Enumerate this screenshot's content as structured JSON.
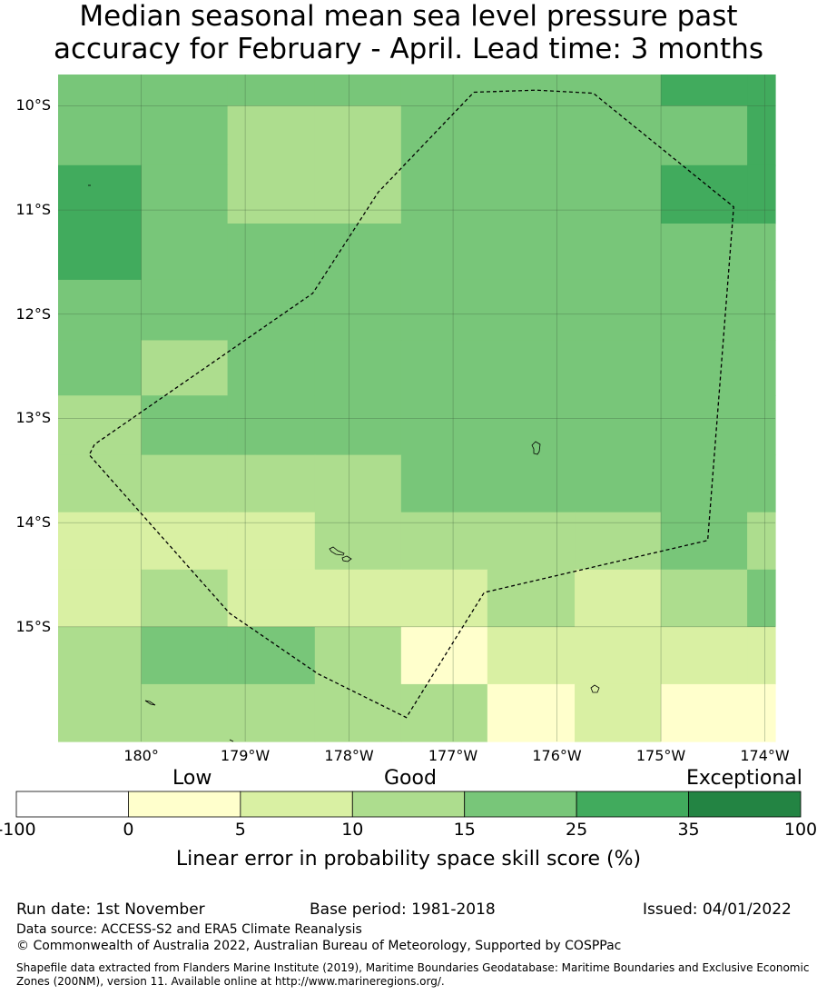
{
  "title": {
    "line1": "Median seasonal mean sea level pressure past",
    "line2": "accuracy for February - April. Lead time: 3 months"
  },
  "map": {
    "lat_labels": [
      "10°S",
      "11°S",
      "12°S",
      "13°S",
      "14°S",
      "15°S"
    ],
    "lon_labels": [
      "180°",
      "179°W",
      "178°W",
      "177°W",
      "176°W",
      "175°W",
      "174°W"
    ],
    "lat_values": [
      -10,
      -11,
      -12,
      -13,
      -14,
      -15
    ],
    "lon_values": [
      -180,
      -179,
      -178,
      -177,
      -176,
      -175,
      -174
    ],
    "extent": {
      "lon_min": -180.8,
      "lon_max": -173.9,
      "lat_max": -9.7,
      "lat_min": -16.1
    },
    "cell_lon_edges": [
      -180.8,
      -180.0,
      -179.17,
      -178.33,
      -177.5,
      -176.67,
      -175.83,
      -175.0,
      -174.17,
      -173.9
    ],
    "cell_lat_edges": [
      -9.7,
      -10.0,
      -10.57,
      -11.13,
      -11.67,
      -12.25,
      -12.78,
      -13.35,
      -13.9,
      -14.45,
      -15.0,
      -15.55,
      -16.1
    ],
    "grid_category_index": [
      [
        3,
        3,
        3,
        3,
        3,
        3,
        3,
        4,
        4
      ],
      [
        3,
        3,
        2,
        2,
        3,
        3,
        3,
        3,
        4
      ],
      [
        4,
        3,
        2,
        2,
        3,
        3,
        3,
        4,
        4
      ],
      [
        4,
        3,
        3,
        3,
        3,
        3,
        3,
        3,
        3
      ],
      [
        3,
        3,
        3,
        3,
        3,
        3,
        3,
        3,
        3
      ],
      [
        3,
        2,
        3,
        3,
        3,
        3,
        3,
        3,
        3
      ],
      [
        2,
        3,
        3,
        3,
        3,
        3,
        3,
        3,
        3
      ],
      [
        2,
        2,
        2,
        2,
        3,
        3,
        3,
        3,
        3
      ],
      [
        1,
        1,
        1,
        2,
        2,
        2,
        2,
        3,
        2
      ],
      [
        1,
        2,
        1,
        1,
        1,
        2,
        1,
        2,
        3
      ],
      [
        2,
        3,
        3,
        2,
        0,
        1,
        1,
        1,
        1
      ],
      [
        2,
        2,
        2,
        2,
        2,
        0,
        1,
        0,
        0
      ]
    ],
    "eez_boundary": [
      [
        -176.8,
        -9.87
      ],
      [
        -176.2,
        -9.85
      ],
      [
        -175.65,
        -9.88
      ],
      [
        -174.3,
        -10.97
      ],
      [
        -174.55,
        -14.17
      ],
      [
        -176.7,
        -14.67
      ],
      [
        -177.45,
        -15.87
      ],
      [
        -178.3,
        -15.45
      ],
      [
        -179.15,
        -14.87
      ],
      [
        -180.5,
        -13.35
      ],
      [
        -180.45,
        -13.25
      ],
      [
        -178.35,
        -11.8
      ],
      [
        -177.72,
        -10.83
      ],
      [
        -176.8,
        -9.87
      ]
    ]
  },
  "colorbar": {
    "category_words": {
      "low": "Low",
      "good": "Good",
      "exceptional": "Exceptional"
    },
    "tick_labels": [
      "-100",
      "0",
      "5",
      "10",
      "15",
      "25",
      "35",
      "100"
    ],
    "colors": [
      "#ffffff",
      "#ffffcc",
      "#d9f0a3",
      "#addd8e",
      "#78c679",
      "#41ab5d",
      "#238443"
    ],
    "title": "Linear error in probability space skill score (%)"
  },
  "footer": {
    "run_date": "Run date: 1st November",
    "base_period": "Base period: 1981-2018",
    "issued": "Issued: 04/01/2022",
    "data_source": "Data source: ACCESS-S2 and ERA5 Climate Reanalysis",
    "copyright": "© Commonwealth of Australia 2022, Australian Bureau of Meteorology, Supported by COSPPac",
    "shapefile_line1": "Shapefile data extracted from Flanders Marine Institute (2019), Maritime Boundaries Geodatabase: Maritime Boundaries and Exclusive Economic",
    "shapefile_line2": "Zones (200NM), version 11. Available online at http://www.marineregions.org/."
  }
}
